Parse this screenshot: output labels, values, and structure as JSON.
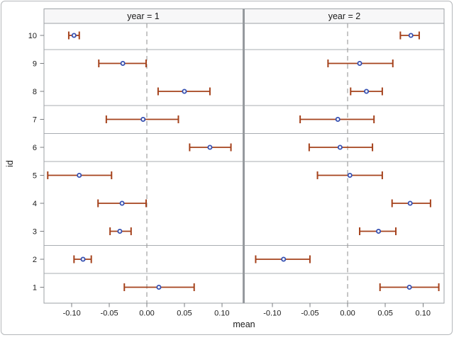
{
  "chart_data": {
    "type": "scatter",
    "subtype": "dot-plot-with-error-bars",
    "title": "",
    "xlabel": "mean",
    "ylabel": "id",
    "grid": false,
    "legend": "none",
    "xlim": [
      -0.137,
      0.128
    ],
    "xticks": [
      "-0.10",
      "-0.05",
      "0.00",
      "0.05",
      "0.10"
    ],
    "xtick_values": [
      -0.1,
      -0.05,
      0.0,
      0.05,
      0.1
    ],
    "ids_top_to_bottom": [
      "10",
      "9",
      "8",
      "7",
      "6",
      "5",
      "4",
      "3",
      "2",
      "1"
    ],
    "reference_line_x": 0,
    "row_separators_after_id": [
      "10",
      "8",
      "7",
      "6",
      "3",
      "2"
    ],
    "panels": [
      {
        "label": "year = 1",
        "points": [
          {
            "id": "10",
            "lower": -0.104,
            "mean": -0.097,
            "upper": -0.09
          },
          {
            "id": "9",
            "lower": -0.064,
            "mean": -0.032,
            "upper": -0.001
          },
          {
            "id": "8",
            "lower": 0.015,
            "mean": 0.05,
            "upper": 0.084
          },
          {
            "id": "7",
            "lower": -0.054,
            "mean": -0.005,
            "upper": 0.042
          },
          {
            "id": "6",
            "lower": 0.057,
            "mean": 0.084,
            "upper": 0.112
          },
          {
            "id": "5",
            "lower": -0.132,
            "mean": -0.09,
            "upper": -0.047
          },
          {
            "id": "4",
            "lower": -0.065,
            "mean": -0.033,
            "upper": -0.001
          },
          {
            "id": "3",
            "lower": -0.049,
            "mean": -0.036,
            "upper": -0.021
          },
          {
            "id": "2",
            "lower": -0.097,
            "mean": -0.085,
            "upper": -0.074
          },
          {
            "id": "1",
            "lower": -0.03,
            "mean": 0.016,
            "upper": 0.063
          }
        ]
      },
      {
        "label": "year = 2",
        "points": [
          {
            "id": "10",
            "lower": 0.07,
            "mean": 0.084,
            "upper": 0.095
          },
          {
            "id": "9",
            "lower": -0.026,
            "mean": 0.016,
            "upper": 0.06
          },
          {
            "id": "8",
            "lower": 0.004,
            "mean": 0.025,
            "upper": 0.046
          },
          {
            "id": "7",
            "lower": -0.063,
            "mean": -0.013,
            "upper": 0.035
          },
          {
            "id": "6",
            "lower": -0.051,
            "mean": -0.01,
            "upper": 0.033
          },
          {
            "id": "5",
            "lower": -0.04,
            "mean": 0.003,
            "upper": 0.046
          },
          {
            "id": "4",
            "lower": 0.059,
            "mean": 0.083,
            "upper": 0.11
          },
          {
            "id": "3",
            "lower": 0.016,
            "mean": 0.041,
            "upper": 0.064
          },
          {
            "id": "2",
            "lower": -0.122,
            "mean": -0.085,
            "upper": -0.05
          },
          {
            "id": "1",
            "lower": 0.043,
            "mean": 0.082,
            "upper": 0.121
          }
        ]
      }
    ],
    "colors": {
      "error_bar": "#a5421c",
      "marker_stroke": "#3550b2",
      "marker_fill": "#ffffff",
      "reference_line": "#a0a0a0",
      "panel_border": "#9ea2a6",
      "row_separator": "#a9adb2",
      "panel_divider": "#969a9e",
      "header_fill": "#f7f7f8",
      "figure_border": "#b4b7ba",
      "tick": "#7a7d80",
      "text": "#1a1a1a"
    }
  }
}
